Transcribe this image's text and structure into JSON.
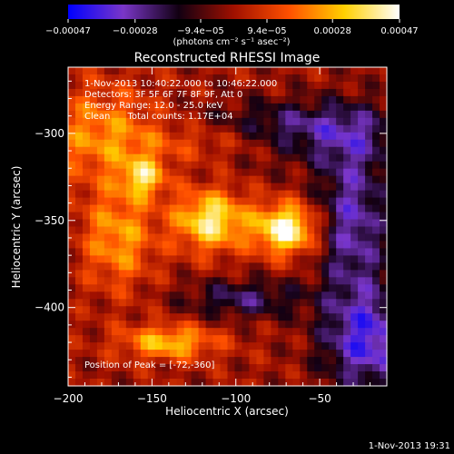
{
  "chart_data": {
    "type": "heatmap",
    "title": "Reconstructed RHESSI Image",
    "xlabel": "Heliocentric X (arcsec)",
    "ylabel": "Heliocentric Y (arcsec)",
    "xlim": [
      -200,
      -10
    ],
    "ylim": [
      -445,
      -262
    ],
    "x_ticks": [
      -200,
      -150,
      -100,
      -50
    ],
    "x_tick_labels": [
      "−200",
      "−150",
      "−100",
      "−50"
    ],
    "y_ticks": [
      -300,
      -350,
      -400
    ],
    "y_tick_labels": [
      "−300",
      "−350",
      "−400"
    ],
    "colorbar": {
      "range": [
        -0.00047,
        0.00047
      ],
      "tick_values": [
        -0.00047,
        -0.00028,
        -9.4e-05,
        9.4e-05,
        0.00028,
        0.00047
      ],
      "tick_labels": [
        "−0.00047",
        "−0.00028",
        "−9.4e−05",
        "9.4e−05",
        "0.00028",
        "0.00047"
      ],
      "units": "(photons cm⁻² s⁻¹ asec⁻²)",
      "colors": [
        "#0000ff",
        "#7a36c8",
        "#120012",
        "#a01000",
        "#ff5000",
        "#ffd000",
        "#ffffff"
      ]
    },
    "annotations": [
      "1-Nov-2013 10:40:22.000 to 10:46:22.000",
      "Detectors: 3F 5F 6F 7F 8F 9F, Att 0",
      "Energy Range: 12.0 - 25.0 keV",
      "Clean      Total counts: 1.17E+04"
    ],
    "peak": {
      "label": "Position of Peak = [-72,-360]",
      "x": -72,
      "y": -360
    },
    "sources": [
      {
        "x": -70,
        "y": -355,
        "sx": 13,
        "sy": 10,
        "amp": 0.00047
      },
      {
        "x": -115,
        "y": -350,
        "sx": 15,
        "sy": 12,
        "amp": 0.0004
      },
      {
        "x": -155,
        "y": -325,
        "sx": 9,
        "sy": 8,
        "amp": 0.0003
      },
      {
        "x": -140,
        "y": -420,
        "sx": 20,
        "sy": 7,
        "amp": 0.0003
      },
      {
        "x": -180,
        "y": -300,
        "sx": 25,
        "sy": 20,
        "amp": 0.00022
      },
      {
        "x": -170,
        "y": -360,
        "sx": 15,
        "sy": 20,
        "amp": 0.00025
      },
      {
        "x": -100,
        "y": -305,
        "sx": 40,
        "sy": 8,
        "amp": 0.00018
      },
      {
        "x": -60,
        "y": -300,
        "sx": 40,
        "sy": 12,
        "amp": -0.00032
      },
      {
        "x": -30,
        "y": -350,
        "sx": 15,
        "sy": 35,
        "amp": -0.0003
      },
      {
        "x": -20,
        "y": -420,
        "sx": 20,
        "sy": 20,
        "amp": -0.00035
      },
      {
        "x": -95,
        "y": -395,
        "sx": 25,
        "sy": 8,
        "amp": -0.00022
      }
    ]
  },
  "footer": {
    "timestamp": "1-Nov-2013 19:31"
  }
}
